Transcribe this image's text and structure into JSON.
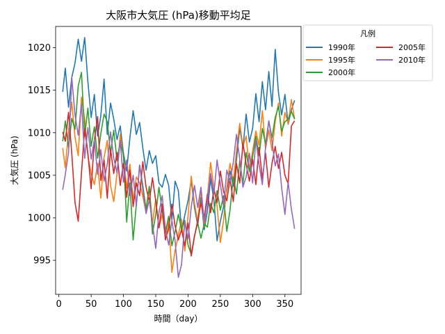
{
  "chart_data": {
    "type": "line",
    "title": "大阪市大気圧 (hPa)移動平均足",
    "xlabel": "時間（day）",
    "ylabel": "大気圧 (hPa)",
    "xlim": [
      -5,
      375
    ],
    "ylim": [
      991,
      1022.5
    ],
    "xticks": [
      0,
      50,
      100,
      150,
      200,
      250,
      300,
      350
    ],
    "yticks": [
      995,
      1000,
      1005,
      1010,
      1015,
      1020
    ],
    "grid": false,
    "legend": {
      "title": "凡例",
      "placement": "outside-top-right",
      "columns": 2
    },
    "series": [
      {
        "name": "1990年",
        "color": "#1f77b4",
        "x": [
          6,
          10,
          15,
          20,
          25,
          30,
          35,
          40,
          45,
          50,
          55,
          60,
          65,
          70,
          75,
          80,
          85,
          90,
          95,
          100,
          105,
          110,
          115,
          120,
          125,
          130,
          135,
          140,
          145,
          150,
          155,
          160,
          165,
          170,
          175,
          180,
          185,
          190,
          195,
          200,
          205,
          210,
          215,
          220,
          225,
          230,
          235,
          240,
          245,
          250,
          255,
          260,
          265,
          270,
          275,
          280,
          285,
          290,
          295,
          300,
          305,
          310,
          315,
          320,
          325,
          330,
          335,
          340,
          345,
          350,
          355,
          360,
          365
        ],
        "values": [
          1014.8,
          1017.6,
          1013.0,
          1016.5,
          1018.2,
          1021.0,
          1018.4,
          1021.2,
          1016.0,
          1011.8,
          1014.5,
          1009.6,
          1012.0,
          1016.3,
          1009.8,
          1013.5,
          1011.6,
          1009.2,
          1010.8,
          1007.6,
          1005.5,
          1009.4,
          1012.6,
          1009.8,
          1011.2,
          1008.2,
          1005.6,
          1007.9,
          1006.4,
          1007.3,
          1004.1,
          1003.6,
          1005.1,
          1003.8,
          999.8,
          1004.3,
          1003.2,
          998.5,
          1000.3,
          1002.0,
          1004.4,
          1001.2,
          999.1,
          1002.4,
          998.6,
          1000.8,
          1004.6,
          1002.1,
          997.3,
          999.6,
          1001.3,
          1003.2,
          1005.5,
          1003.7,
          1006.8,
          1010.6,
          1008.2,
          1012.2,
          1008.9,
          1010.5,
          1014.6,
          1011.3,
          1016.0,
          1012.7,
          1017.2,
          1013.1,
          1019.8,
          1014.7,
          1012.1,
          1014.5,
          1011.0,
          1012.7,
          1013.8
        ]
      },
      {
        "name": "1995年",
        "color": "#ff7f0e",
        "x": [
          6,
          10,
          15,
          20,
          25,
          30,
          35,
          40,
          45,
          50,
          55,
          60,
          65,
          70,
          75,
          80,
          85,
          90,
          95,
          100,
          105,
          110,
          115,
          120,
          125,
          130,
          135,
          140,
          145,
          150,
          155,
          160,
          165,
          170,
          175,
          180,
          185,
          190,
          195,
          200,
          205,
          210,
          215,
          220,
          225,
          230,
          235,
          240,
          245,
          250,
          255,
          260,
          265,
          270,
          275,
          280,
          285,
          290,
          295,
          300,
          305,
          310,
          315,
          320,
          325,
          330,
          335,
          340,
          345,
          350,
          355,
          360,
          365
        ],
        "values": [
          1008.2,
          1005.9,
          1010.3,
          1013.6,
          1009.5,
          1007.3,
          1014.2,
          1011.6,
          1007.3,
          1005.2,
          1003.9,
          1006.4,
          1002.3,
          1007.1,
          1009.1,
          1003.8,
          1001.9,
          1005.2,
          1009.8,
          1007.2,
          1003.5,
          1006.3,
          1002.1,
          1004.8,
          1004.1,
          1002.5,
          1000.6,
          1003.6,
          999.3,
          1002.2,
          998.8,
          1000.4,
          997.7,
          999.6,
          993.6,
          996.2,
          997.9,
          999.8,
          996.1,
          1000.2,
          1004.9,
          1001.7,
          999.5,
          1003.4,
          998.9,
          1002.5,
          1006.5,
          1003.6,
          1001.4,
          997.1,
          999.7,
          1003.6,
          1006.4,
          1004.2,
          1007.9,
          1011.1,
          1008.4,
          1009.6,
          1005.7,
          1007.8,
          1010.2,
          1008.5,
          1012.6,
          1008.1,
          1010.3,
          1007.9,
          1011.3,
          1013.5,
          1009.6,
          1012.4,
          1011.1,
          1013.9,
          1011.6
        ]
      },
      {
        "name": "2000年",
        "color": "#2ca02c",
        "x": [
          6,
          10,
          15,
          20,
          25,
          30,
          35,
          40,
          45,
          50,
          55,
          60,
          65,
          70,
          75,
          80,
          85,
          90,
          95,
          100,
          105,
          110,
          115,
          120,
          125,
          130,
          135,
          140,
          145,
          150,
          155,
          160,
          165,
          170,
          175,
          180,
          185,
          190,
          195,
          200,
          205,
          210,
          215,
          220,
          225,
          230,
          235,
          240,
          245,
          250,
          255,
          260,
          265,
          270,
          275,
          280,
          285,
          290,
          295,
          300,
          305,
          310,
          315,
          320,
          325,
          330,
          335,
          340,
          345,
          350,
          355,
          360,
          365
        ],
        "values": [
          1009.0,
          1011.4,
          1008.2,
          1011.7,
          1010.4,
          1015.5,
          1017.1,
          1009.6,
          1012.9,
          1008.4,
          1010.7,
          1007.0,
          1009.9,
          1012.2,
          1011.3,
          1007.6,
          1010.3,
          1006.7,
          1008.9,
          1007.4,
          999.5,
          1004.1,
          997.4,
          1001.6,
          1006.2,
          1003.8,
          1001.0,
          1003.7,
          998.1,
          1000.4,
          1003.6,
          1000.8,
          998.3,
          1000.2,
          996.7,
          998.4,
          1000.4,
          998.6,
          999.7,
          996.8,
          995.7,
          997.9,
          999.4,
          997.6,
          999.3,
          998.9,
          1001.7,
          1000.6,
          1003.2,
          1000.9,
          1002.6,
          998.4,
          1000.9,
          1004.8,
          1002.8,
          1006.7,
          1004.0,
          1007.7,
          1005.4,
          1007.2,
          1009.6,
          1007.3,
          1010.5,
          1008.7,
          1011.4,
          1009.4,
          1011.8,
          1013.1,
          1010.2,
          1011.3,
          1011.6,
          1012.5,
          1011.6
        ]
      },
      {
        "name": "2005年",
        "color": "#d62728",
        "x": [
          6,
          10,
          15,
          20,
          25,
          30,
          35,
          40,
          45,
          50,
          55,
          60,
          65,
          70,
          75,
          80,
          85,
          90,
          95,
          100,
          105,
          110,
          115,
          120,
          125,
          130,
          135,
          140,
          145,
          150,
          155,
          160,
          165,
          170,
          175,
          180,
          185,
          190,
          195,
          200,
          205,
          210,
          215,
          220,
          225,
          230,
          235,
          240,
          245,
          250,
          255,
          260,
          265,
          270,
          275,
          280,
          285,
          290,
          295,
          300,
          305,
          310,
          315,
          320,
          325,
          330,
          335,
          340,
          345,
          350,
          355,
          360,
          365
        ],
        "values": [
          1010.1,
          1009.0,
          1012.4,
          1007.6,
          1001.8,
          999.6,
          1005.3,
          1010.5,
          1007.6,
          1003.4,
          1009.1,
          1011.9,
          1004.4,
          1006.8,
          1002.3,
          1008.1,
          1005.2,
          1007.7,
          1003.8,
          1006.4,
          1002.4,
          1005.6,
          1001.3,
          1004.1,
          1002.6,
          1006.6,
          1003.6,
          1001.9,
          1004.7,
          1002.0,
          998.8,
          1001.6,
          997.4,
          998.8,
          1001.6,
          999.0,
          997.4,
          998.6,
          996.7,
          999.4,
          995.5,
          997.8,
          999.7,
          1001.7,
          1000.0,
          1002.8,
          1000.6,
          1003.4,
          1001.8,
          1005.5,
          1003.1,
          1002.0,
          1004.6,
          1001.9,
          1006.4,
          1004.1,
          1008.8,
          1006.3,
          1004.3,
          1006.9,
          1003.9,
          1008.3,
          1004.6,
          1007.6,
          1003.6,
          1006.4,
          1008.4,
          1005.8,
          1007.7,
          1005.0,
          1004.0,
          1010.8,
          1011.4
        ]
      },
      {
        "name": "2010年",
        "color": "#9467bd",
        "x": [
          6,
          10,
          15,
          20,
          25,
          30,
          35,
          40,
          45,
          50,
          55,
          60,
          65,
          70,
          75,
          80,
          85,
          90,
          95,
          100,
          105,
          110,
          115,
          120,
          125,
          130,
          135,
          140,
          145,
          150,
          155,
          160,
          165,
          170,
          175,
          180,
          185,
          190,
          195,
          200,
          205,
          210,
          215,
          220,
          225,
          230,
          235,
          240,
          245,
          250,
          255,
          260,
          265,
          270,
          275,
          280,
          285,
          290,
          295,
          300,
          305,
          310,
          315,
          320,
          325,
          330,
          335,
          340,
          345,
          350,
          355,
          360,
          365
        ],
        "values": [
          1003.3,
          1005.1,
          1007.7,
          1016.5,
          1012.1,
          1009.7,
          1013.4,
          1007.0,
          1010.6,
          1006.9,
          1009.2,
          1005.1,
          1008.0,
          1004.3,
          1006.3,
          1010.1,
          1007.0,
          1005.3,
          1009.1,
          1004.2,
          1006.8,
          1002.6,
          1005.0,
          1001.4,
          1006.2,
          1003.3,
          1000.5,
          1002.1,
          999.3,
          996.4,
          1000.6,
          1002.6,
          998.7,
          996.8,
          999.7,
          997.2,
          993.0,
          994.5,
          999.6,
          997.5,
          1001.3,
          1003.8,
          1001.2,
          1003.6,
          999.5,
          1002.1,
          1005.2,
          1002.8,
          1006.8,
          1004.0,
          1001.4,
          1005.6,
          1004.3,
          1006.5,
          1009.8,
          1006.9,
          1003.6,
          1004.8,
          1007.6,
          1004.1,
          1009.2,
          1006.3,
          1003.9,
          1008.3,
          1011.4,
          1009.0,
          1006.1,
          1007.5,
          1003.5,
          1000.4,
          1004.2,
          1001.0,
          998.7
        ]
      }
    ]
  }
}
